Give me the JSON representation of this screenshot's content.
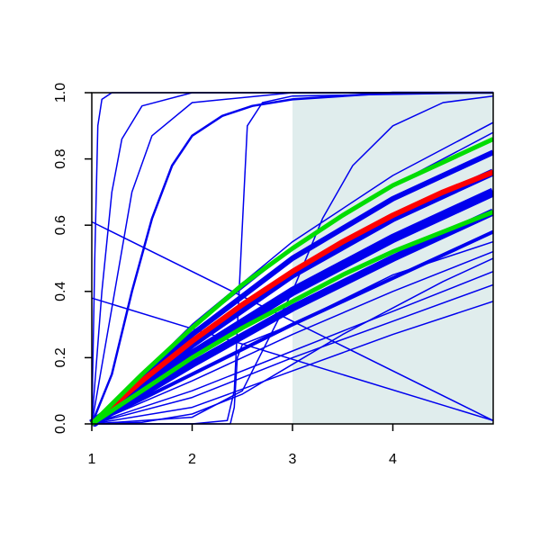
{
  "chart_data": {
    "type": "line",
    "xlim": [
      1,
      5
    ],
    "xticks": [
      1,
      2,
      3,
      4
    ],
    "ylim": [
      0,
      1
    ],
    "yticks": [
      {
        "value": 0,
        "label": "0.0"
      },
      0.2,
      0.4,
      0.6,
      0.8,
      {
        "value": 1,
        "label": "1.0"
      }
    ],
    "shade": {
      "x": [
        3,
        5
      ],
      "color": "#e0eded"
    },
    "series": [
      {
        "color": "#0000ee",
        "width": 1.5,
        "x": [
          1,
          1.03,
          1.06,
          1.1,
          1.2,
          5
        ],
        "values": [
          0,
          0.5,
          0.9,
          0.98,
          1,
          1
        ]
      },
      {
        "color": "#0000ee",
        "width": 1.5,
        "x": [
          1,
          1.1,
          1.2,
          1.3,
          1.5,
          2,
          3,
          5
        ],
        "values": [
          0,
          0.4,
          0.7,
          0.86,
          0.96,
          1,
          1,
          1
        ]
      },
      {
        "color": "#0000ee",
        "width": 1.5,
        "x": [
          1,
          1.2,
          1.4,
          1.6,
          2,
          3,
          5
        ],
        "values": [
          0,
          0.35,
          0.7,
          0.87,
          0.97,
          1,
          1
        ]
      },
      {
        "color": "#0000ee",
        "width": 2.5,
        "x": [
          1,
          1.2,
          1.4,
          1.6,
          1.8,
          2,
          2.3,
          2.6,
          3,
          4,
          5
        ],
        "values": [
          0,
          0.15,
          0.4,
          0.62,
          0.78,
          0.87,
          0.93,
          0.96,
          0.98,
          1,
          1
        ]
      },
      {
        "color": "#0000ee",
        "width": 1.5,
        "x": [
          1,
          2,
          2.35,
          2.42,
          2.5,
          2.55,
          2.7,
          3,
          5
        ],
        "values": [
          0,
          0,
          0.01,
          0.1,
          0.6,
          0.9,
          0.97,
          0.99,
          1
        ]
      },
      {
        "color": "#0000ee",
        "width": 1.5,
        "x": [
          1,
          2.38,
          2.42,
          2.45,
          2.5,
          3,
          4,
          5
        ],
        "values": [
          0,
          0,
          0.05,
          0.2,
          0.24,
          0.3,
          0.45,
          0.55
        ]
      },
      {
        "color": "#0000ee",
        "width": 1.5,
        "x": [
          1,
          2,
          2.5,
          3,
          3.3,
          3.6,
          4,
          4.5,
          5
        ],
        "values": [
          0,
          0.02,
          0.1,
          0.4,
          0.62,
          0.78,
          0.9,
          0.97,
          0.99
        ]
      },
      {
        "color": "#0000ee",
        "width": 1.5,
        "x": [
          1,
          5
        ],
        "values": [
          0.61,
          0.01
        ]
      },
      {
        "color": "#0000ee",
        "width": 1.5,
        "x": [
          1,
          5
        ],
        "values": [
          0.38,
          0.01
        ]
      },
      {
        "color": "#0000ee",
        "width": 1.5,
        "x": [
          1,
          2,
          3,
          4,
          5
        ],
        "values": [
          0,
          0.3,
          0.55,
          0.75,
          0.91
        ]
      },
      {
        "color": "#0000ee",
        "width": 1.5,
        "x": [
          1,
          2,
          3,
          4,
          5
        ],
        "values": [
          0,
          0.29,
          0.53,
          0.72,
          0.88
        ]
      },
      {
        "color": "#0000ee",
        "width": 6,
        "x": [
          1,
          2,
          3,
          4,
          5
        ],
        "values": [
          0,
          0.27,
          0.5,
          0.68,
          0.82
        ]
      },
      {
        "color": "#0000ee",
        "width": 8,
        "x": [
          1,
          2,
          3,
          4,
          5
        ],
        "values": [
          0,
          0.24,
          0.45,
          0.62,
          0.76
        ]
      },
      {
        "color": "#0000ee",
        "width": 10,
        "x": [
          1,
          2,
          3,
          4,
          5
        ],
        "values": [
          0,
          0.21,
          0.4,
          0.56,
          0.7
        ]
      },
      {
        "color": "#0000ee",
        "width": 8,
        "x": [
          1,
          2,
          3,
          4,
          5
        ],
        "values": [
          0,
          0.18,
          0.35,
          0.5,
          0.64
        ]
      },
      {
        "color": "#0000ee",
        "width": 4,
        "x": [
          1,
          2,
          3,
          4,
          5
        ],
        "values": [
          0,
          0.15,
          0.3,
          0.44,
          0.58
        ]
      },
      {
        "color": "#0000ee",
        "width": 1.5,
        "x": [
          1,
          2,
          3,
          4,
          5
        ],
        "values": [
          0,
          0.13,
          0.27,
          0.4,
          0.52
        ]
      },
      {
        "color": "#0000ee",
        "width": 1.5,
        "x": [
          1,
          2,
          3,
          4,
          5
        ],
        "values": [
          0,
          0.1,
          0.22,
          0.34,
          0.46
        ]
      },
      {
        "color": "#0000ee",
        "width": 1.5,
        "x": [
          1,
          2,
          3,
          4,
          5
        ],
        "values": [
          0,
          0.08,
          0.2,
          0.31,
          0.42
        ]
      },
      {
        "color": "#0000ee",
        "width": 1.5,
        "x": [
          1,
          2,
          3,
          4,
          5
        ],
        "values": [
          0,
          0.05,
          0.16,
          0.27,
          0.37
        ]
      },
      {
        "color": "#0000ee",
        "width": 1.5,
        "x": [
          1,
          1.5,
          2,
          2.5,
          3,
          3.5,
          4,
          4.5,
          5
        ],
        "values": [
          0,
          0.005,
          0.03,
          0.09,
          0.18,
          0.27,
          0.35,
          0.43,
          0.5
        ]
      },
      {
        "color": "#ff0000",
        "width": 6,
        "x": [
          1,
          1.5,
          2,
          2.5,
          3,
          3.5,
          4,
          4.5,
          5
        ],
        "values": [
          0,
          0.13,
          0.25,
          0.36,
          0.46,
          0.55,
          0.63,
          0.7,
          0.76
        ]
      },
      {
        "color": "#00dd00",
        "width": 5,
        "x": [
          1,
          1.5,
          2,
          2.5,
          3,
          3.5,
          4,
          4.5,
          5
        ],
        "values": [
          0,
          0.15,
          0.29,
          0.42,
          0.53,
          0.63,
          0.72,
          0.79,
          0.86
        ]
      },
      {
        "color": "#00dd00",
        "width": 5,
        "x": [
          1,
          1.5,
          2,
          2.5,
          3,
          3.5,
          4,
          4.5,
          5
        ],
        "values": [
          0,
          0.1,
          0.2,
          0.29,
          0.37,
          0.45,
          0.52,
          0.58,
          0.64
        ]
      }
    ]
  }
}
